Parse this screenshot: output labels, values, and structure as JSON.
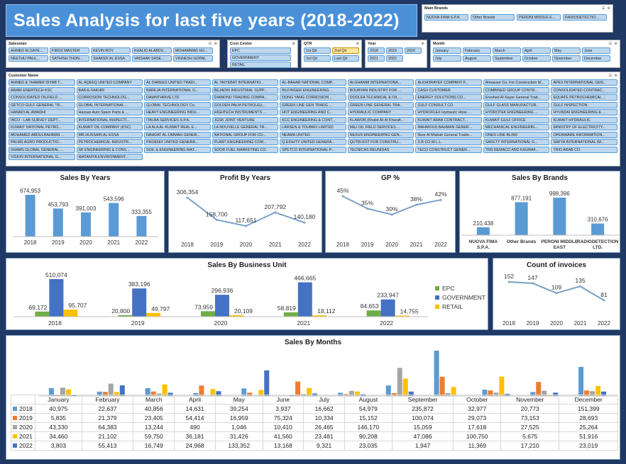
{
  "title": "Sales Analysis for last five years (2018-2022)",
  "colors": {
    "blue": "#5b9bd5",
    "dark_blue": "#4472c4",
    "green": "#70ad47",
    "yellow": "#ffc000",
    "grey": "#a5a5a5",
    "orange": "#ed7d31"
  },
  "slicers": {
    "main_brands": {
      "label": "Main Brands",
      "items": [
        "NUOVA FIMA S.P.A.",
        "Other Brands",
        "PERONI MIDDLE E...",
        "RADIODETECTIO..."
      ]
    },
    "salesman": {
      "label": "Salesman",
      "items": [
        "AHMED ELSAYE...",
        "FIROZ MASTER",
        "KEVIN ROY",
        "KHALID ALABDU...",
        "MOHAMMAD HU...",
        "NEETHU PAUL...",
        "SATHISH THON...",
        "SHAKER AL ESSA",
        "VAISHAK SASE...",
        "VIGNESH GOPAL"
      ]
    },
    "cost_center": {
      "label": "Cost Center",
      "items": [
        "EPC",
        "GOVERNMENT",
        "RETAIL"
      ]
    },
    "qtr": {
      "label": "QTR",
      "items": [
        "1st Qtr",
        "2nd Qtr",
        "3rd Qtr",
        "Last Qtr"
      ]
    },
    "year": {
      "label": "Year",
      "items": [
        "2018",
        "2019",
        "2020",
        "2021",
        "2022"
      ]
    },
    "month": {
      "label": "Month",
      "items": [
        "January",
        "February",
        "March",
        "April",
        "May",
        "June",
        "July",
        "August",
        "September",
        "October",
        "November",
        "December"
      ]
    },
    "customer": {
      "label": "Customer Name",
      "items": [
        "AHMED & THAMER DIYAB T...",
        "AL AQEEQ UNITED COMPANY",
        "AL DAREES UNITED TRADI...",
        "AL TAIYEBAT INTERNATIO...",
        "AL-BAHAR NATIONAL COMP...",
        "ALGHANIM INTERNATIONA...",
        "ALKHORAYEF COMPANY F...",
        "Almasser Co. For Construction M...",
        "APEX INTERNATIONAL GEN...",
        "ARABI ENERTECH KSC",
        "BAB-E-FAKHRI",
        "BAREJA INTERNATIONAL G...",
        "BEJADIN INDUSTRIAL SUPP...",
        "BILFINGER ENGINEERING ...",
        "BOUBYAN INDUSTRY FOR ...",
        "CASH CUSTOMER",
        "COMBINED GROUP CONTR...",
        "CONSOLIDATED CONTRAC...",
        "CONSOLIDATED OILFIELD ...",
        "CORROSION TECHNOLOG...",
        "DAWNTHRIVE LTD",
        "DIAMOND TRADING COMPA...",
        "DONG YANG CORROSION ...",
        "DOOLEA TECHNICAL & OIL ...",
        "ENERGY SOLUTIONS CO...",
        "Eroshed Al-Sayer General Trad...",
        "EQUATE PETROCHEMICAL ...",
        "GETCO GULF GENERAL TR...",
        "GLOBAL INTERNATIONAL ...",
        "GLOBAL TECHNOLOGY Co.",
        "GOLDEN PALM PETROLEU...",
        "GREEN LINE GEN TRADG ...",
        "GREEN LINE GENERAL TRA...",
        "GULF CONSULT CO.",
        "GULF GLASS MANUFACTUR...",
        "GULF INSPECTION",
        "HANADI AL AWADHI",
        "Hassan Auto Spare Parts & ...",
        "HEAVY ENGINEERING INDU...",
        "HIGHTECH INSTRUMENTS ...",
        "HOT ENGINEERING AND C...",
        "HYDRAULIC COMPANY",
        "HYDROFLEX Hydraulic Hose ...",
        "HYDROTEK ENGINEERING ...",
        "HYUNDAI ENGINEERING & ...",
        "INCO - LAB SURVEY DEPT...",
        "INTERNATIONAL INSPECTI...",
        "ITALBA SERVICES S.P.A.",
        "JGSK JOINT VENTURE",
        "KCC ENGINEERING & CONT...",
        "KLAWOR (Khalid Ali Al Kharafi...",
        "KUWAIT ARAB CONTRACT...",
        "KUWAIT GULF OFFICE",
        "KUWAIT HYDRAULIC",
        "KUWAIT NATIONAL PETRO...",
        "KUWAIT OIL COMPANY (KSC)",
        "LA ALA AL-KUWAIT REAL E...",
        "LA NOUVELLE GENERAL TR...",
        "LARSEN & TOUBRO LIMITED",
        "M&J OIL FIELD SERVICES ...",
        "MAHMOUD BAHMAN GENER...",
        "MECHANICAL ENGINEERIN...",
        "MINISTRY OF ELECTRICITY...",
        "MOHAMED ABDULRAHMAN ...",
        "MR.HUSSAIN AL-ESSA",
        "NAHDAT AL-OMMAH GENER...",
        "NATIONAL GROUP FOR CO...",
        "NEAMA UNITED",
        "NEXUS ENGINEERING GEN...",
        "Noor Al Misbah General Tradin...",
        "ONES LINE BLIND",
        "OPENWARE INFORMATION...",
        "PALMS AGRO PRODUCTIO...",
        "PETROCHEMICAL INDUSTR...",
        "PHOENIX UNITED GENERA...",
        "PLANT ENGINEERING COM...",
        "Q EIGHTY UNITED GENERA...",
        "QUTBI EST FOR CONSTRU...",
        "S B CO.W.L.L.",
        "SAFETY INTERNATIONAL G...",
        "SAFYA INTERNATIONAL IM...",
        "SHAMS GLOBAL GENERAL ...",
        "SK ENGINEERING & CONS...",
        "SOIL & ENGINEERING MAT...",
        "SOOR FUEL MARKETING CO.",
        "SPETCO INTERNATIONAL P...",
        "TECNICAS REUNIDAS",
        "TECO CONSTRUCT GENER...",
        "TNS REMACO AND KHURAF...",
        "TRIO ARAB CO.",
        "VISION INTERNATIONAL G...",
        "WATANIYA ENVIRONMENT..."
      ]
    }
  },
  "charts": {
    "sales_by_years": {
      "title": "Sales By Years",
      "categories": [
        "2018",
        "2019",
        "2020",
        "2021",
        "2022"
      ],
      "values": [
        674953,
        453793,
        391003,
        543596,
        333355
      ],
      "labels": [
        "674,953",
        "453,793",
        "391,003",
        "543,596",
        "333,355"
      ]
    },
    "profit_by_years": {
      "title": "Profit By Years",
      "categories": [
        "2018",
        "2019",
        "2020",
        "2021",
        "2022"
      ],
      "values": [
        306354,
        158700,
        117651,
        207792,
        140180
      ],
      "labels": [
        "306,354",
        "158,700",
        "117,651",
        "207,792",
        "140,180"
      ]
    },
    "gp_percent": {
      "title": "GP %",
      "categories": [
        "2018",
        "2019",
        "2020",
        "2021",
        "2022"
      ],
      "values": [
        45,
        35,
        30,
        38,
        42
      ],
      "labels": [
        "45%",
        "35%",
        "30%",
        "38%",
        "42%"
      ]
    },
    "sales_by_brands": {
      "title": "Sales By Brands",
      "categories": [
        "NUOVA FIMA S.P.A.",
        "Other Brands",
        "PERONI MIDDLE EAST",
        "RADIODETECTION LTD."
      ],
      "values": [
        210438,
        877191,
        998396,
        310676
      ],
      "labels": [
        "210,438",
        "877,191",
        "998,396",
        "310,676"
      ]
    },
    "sales_by_business_unit": {
      "title": "Sales By Business Unit",
      "categories": [
        "2018",
        "2019",
        "2020",
        "2021",
        "2022"
      ],
      "series": [
        {
          "name": "EPC",
          "values": [
            69172,
            20800,
            73959,
            58819,
            84653
          ],
          "labels": [
            "69,172",
            "20,800",
            "73,959",
            "58,819",
            "84,653"
          ]
        },
        {
          "name": "GOVERNMENT",
          "values": [
            510074,
            383196,
            296936,
            466665,
            233947
          ],
          "labels": [
            "510,074",
            "383,196",
            "296,936",
            "466,665",
            "233,947"
          ]
        },
        {
          "name": "RETAIL",
          "values": [
            95707,
            49797,
            20109,
            18112,
            14755
          ],
          "labels": [
            "95,707",
            "49,797",
            "20,109",
            "18,112",
            "14,755"
          ]
        }
      ]
    },
    "count_of_invoices": {
      "title": "Count of invoices",
      "categories": [
        "2018",
        "2019",
        "2020",
        "2021",
        "2022"
      ],
      "values": [
        152,
        147,
        109,
        135,
        81
      ],
      "labels": [
        "152",
        "147",
        "109",
        "135",
        "81"
      ]
    },
    "sales_by_months": {
      "title": "Sales By Months",
      "categories": [
        "January",
        "February",
        "March",
        "April",
        "May",
        "June",
        "July",
        "August",
        "September",
        "October",
        "November",
        "December"
      ],
      "series": [
        {
          "name": "2018",
          "values": [
            40975,
            22637,
            40856,
            14631,
            39254,
            3937,
            16662,
            54979,
            235872,
            32977,
            20773,
            151399
          ],
          "labels": [
            "40,975",
            "22,637",
            "40,856",
            "14,631",
            "39,254",
            "3,937",
            "16,662",
            "54,979",
            "235,872",
            "32,977",
            "20,773",
            "151,399"
          ]
        },
        {
          "name": "2019",
          "values": [
            5835,
            21379,
            23405,
            54414,
            16959,
            75324,
            10334,
            15152,
            100074,
            29073,
            73153,
            28693
          ],
          "labels": [
            "5,835",
            "21,379",
            "23,405",
            "54,414",
            "16,959",
            "75,324",
            "10,334",
            "15,152",
            "100,074",
            "29,073",
            "73,153",
            "28,693"
          ]
        },
        {
          "name": "2020",
          "values": [
            43330,
            64383,
            13244,
            490,
            1046,
            10410,
            26465,
            146170,
            15059,
            17618,
            27525,
            25264
          ],
          "labels": [
            "43,330",
            "64,383",
            "13,244",
            "490",
            "1,046",
            "10,410",
            "26,465",
            "146,170",
            "15,059",
            "17,618",
            "27,525",
            "25,264"
          ]
        },
        {
          "name": "2021",
          "values": [
            34460,
            21102,
            59750,
            36181,
            31426,
            41560,
            23481,
            90208,
            47086,
            100750,
            5675,
            51916
          ],
          "labels": [
            "34,460",
            "21,102",
            "59,750",
            "36,181",
            "31,426",
            "41,560",
            "23,481",
            "90,208",
            "47,086",
            "100,750",
            "5,675",
            "51,916"
          ]
        },
        {
          "name": "2022",
          "values": [
            3803,
            55413,
            16749,
            24968,
            133352,
            13168,
            9321,
            23035,
            1947,
            11369,
            17210,
            23019
          ],
          "labels": [
            "3,803",
            "55,413",
            "16,749",
            "24,968",
            "133,352",
            "13,168",
            "9,321",
            "23,035",
            "1,947",
            "11,369",
            "17,210",
            "23,019"
          ]
        }
      ]
    }
  },
  "chart_data": [
    {
      "type": "bar",
      "title": "Sales By Years",
      "categories": [
        "2018",
        "2019",
        "2020",
        "2021",
        "2022"
      ],
      "values": [
        674953,
        453793,
        391003,
        543596,
        333355
      ]
    },
    {
      "type": "line",
      "title": "Profit By Years",
      "categories": [
        "2018",
        "2019",
        "2020",
        "2021",
        "2022"
      ],
      "values": [
        306354,
        158700,
        117651,
        207792,
        140180
      ]
    },
    {
      "type": "line",
      "title": "GP %",
      "categories": [
        "2018",
        "2019",
        "2020",
        "2021",
        "2022"
      ],
      "values": [
        45,
        35,
        30,
        38,
        42
      ]
    },
    {
      "type": "bar",
      "title": "Sales By Brands",
      "categories": [
        "NUOVA FIMA S.P.A.",
        "Other Brands",
        "PERONI MIDDLE EAST",
        "RADIODETECTION LTD."
      ],
      "values": [
        210438,
        877191,
        998396,
        310676
      ]
    },
    {
      "type": "bar",
      "title": "Sales By Business Unit",
      "categories": [
        "2018",
        "2019",
        "2020",
        "2021",
        "2022"
      ],
      "series": [
        {
          "name": "EPC",
          "values": [
            69172,
            20800,
            73959,
            58819,
            84653
          ]
        },
        {
          "name": "GOVERNMENT",
          "values": [
            510074,
            383196,
            296936,
            466665,
            233947
          ]
        },
        {
          "name": "RETAIL",
          "values": [
            95707,
            49797,
            20109,
            18112,
            14755
          ]
        }
      ],
      "legend": "right"
    },
    {
      "type": "line",
      "title": "Count of invoices",
      "categories": [
        "2018",
        "2019",
        "2020",
        "2021",
        "2022"
      ],
      "values": [
        152,
        147,
        109,
        135,
        81
      ]
    },
    {
      "type": "bar",
      "title": "Sales By Months",
      "categories": [
        "January",
        "February",
        "March",
        "April",
        "May",
        "June",
        "July",
        "August",
        "September",
        "October",
        "November",
        "December"
      ],
      "series": [
        {
          "name": "2018",
          "values": [
            40975,
            22637,
            40856,
            14631,
            39254,
            3937,
            16662,
            54979,
            235872,
            32977,
            20773,
            151399
          ]
        },
        {
          "name": "2019",
          "values": [
            5835,
            21379,
            23405,
            54414,
            16959,
            75324,
            10334,
            15152,
            100074,
            29073,
            73153,
            28693
          ]
        },
        {
          "name": "2020",
          "values": [
            43330,
            64383,
            13244,
            490,
            1046,
            10410,
            26465,
            146170,
            15059,
            17618,
            27525,
            25264
          ]
        },
        {
          "name": "2021",
          "values": [
            34460,
            21102,
            59750,
            36181,
            31426,
            41560,
            23481,
            90208,
            47086,
            100750,
            5675,
            51916
          ]
        },
        {
          "name": "2022",
          "values": [
            3803,
            55413,
            16749,
            24968,
            133352,
            13168,
            9321,
            23035,
            1947,
            11369,
            17210,
            23019
          ]
        }
      ],
      "legend": "table"
    }
  ]
}
